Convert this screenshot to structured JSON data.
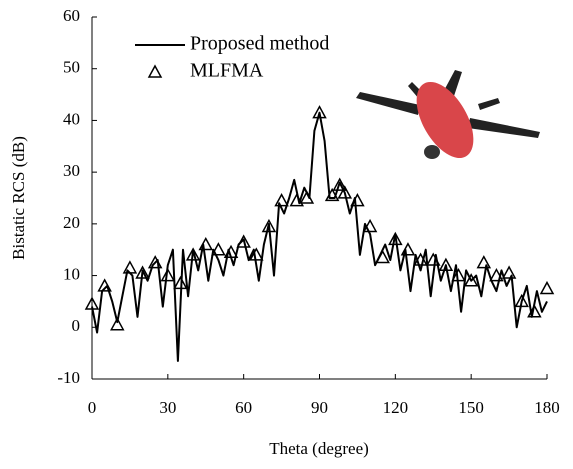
{
  "chart_data": {
    "type": "line",
    "xlabel": "Theta (degree)",
    "ylabel": "Bistatic RCS (dB)",
    "xlim": [
      0,
      180
    ],
    "xticks": [
      0,
      30,
      60,
      90,
      120,
      150,
      180
    ],
    "ylim": [
      -10,
      60
    ],
    "yticks": [
      -10,
      0,
      10,
      20,
      30,
      40,
      50,
      60
    ],
    "legend": "upper left",
    "series": [
      {
        "name": "Proposed method",
        "color": "#000000",
        "marker": "none",
        "x": [
          0,
          2,
          4,
          6,
          8,
          10,
          12,
          14,
          16,
          18,
          20,
          22,
          24,
          26,
          28,
          30,
          32,
          34,
          36,
          38,
          40,
          42,
          44,
          46,
          48,
          50,
          52,
          54,
          56,
          58,
          60,
          62,
          64,
          66,
          68,
          70,
          72,
          74,
          76,
          78,
          80,
          82,
          84,
          86,
          88,
          90,
          92,
          94,
          96,
          98,
          100,
          102,
          104,
          106,
          108,
          110,
          112,
          114,
          116,
          118,
          120,
          122,
          124,
          126,
          128,
          130,
          132,
          134,
          136,
          138,
          140,
          142,
          144,
          146,
          148,
          150,
          152,
          154,
          156,
          158,
          160,
          162,
          164,
          166,
          168,
          170,
          172,
          174,
          176,
          178,
          180
        ],
        "values": [
          4,
          -1,
          7,
          8,
          5,
          1,
          6,
          11,
          10,
          2,
          11,
          9,
          12,
          13,
          4,
          12,
          15,
          -6.5,
          15,
          6,
          15,
          11,
          16,
          9,
          15,
          13,
          10,
          15,
          12,
          16,
          17,
          13,
          15,
          9,
          16,
          20,
          10,
          24,
          22,
          25,
          28.5,
          24,
          27,
          25,
          38,
          41.5,
          36,
          25,
          25,
          28,
          26,
          22,
          25,
          14,
          20,
          18,
          12,
          14,
          16,
          13,
          18,
          11,
          15,
          7,
          14,
          11,
          15,
          6,
          14,
          9,
          12,
          7,
          12,
          3,
          11,
          9,
          10,
          6,
          12,
          9,
          7,
          11,
          8,
          10,
          0,
          5,
          8,
          2,
          7,
          3,
          5
        ]
      },
      {
        "name": "MLFMA",
        "color": "#000000",
        "marker": "triangle",
        "x": [
          0,
          5,
          10,
          15,
          20,
          25,
          30,
          35,
          40,
          45,
          50,
          55,
          60,
          65,
          70,
          75,
          81,
          85,
          90,
          95,
          98,
          100,
          105,
          110,
          115,
          120,
          125,
          130,
          135,
          140,
          145,
          150,
          155,
          160,
          165,
          170,
          175,
          180
        ],
        "values": [
          4.5,
          8,
          0.5,
          11.5,
          10.5,
          12.5,
          10,
          8.5,
          14,
          16,
          15,
          14.5,
          16.5,
          14,
          19.5,
          24.5,
          24.5,
          25,
          41.5,
          25.5,
          27.5,
          26,
          24.5,
          19.5,
          13.5,
          17,
          15,
          13,
          13,
          12,
          10,
          9,
          12.5,
          10,
          10.5,
          5,
          3,
          7.5
        ]
      }
    ]
  }
}
